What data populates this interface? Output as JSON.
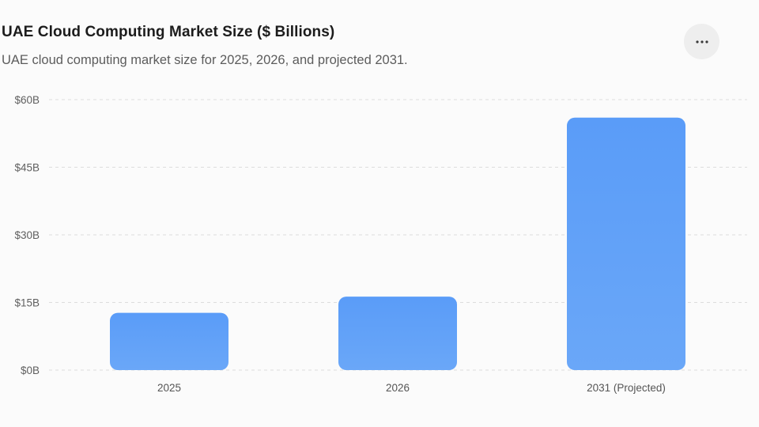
{
  "header": {
    "title": "UAE Cloud Computing Market Size ($ Billions)",
    "subtitle": "UAE cloud computing market size for 2025, 2026, and projected 2031."
  },
  "menu": {
    "icon": "more-horizontal-icon"
  },
  "colors": {
    "bar_top": "#5a9cf8",
    "bar_bottom": "#6aa7f8",
    "grid": "#dddddd",
    "background": "#fbfbfb"
  },
  "chart_data": {
    "type": "bar",
    "categories": [
      "2025",
      "2026",
      "2031 (Projected)"
    ],
    "values": [
      12.7,
      16.3,
      56
    ],
    "ylim": [
      0,
      60
    ],
    "yticks": [
      0,
      15,
      30,
      45,
      60
    ],
    "ytick_labels": [
      "$0B",
      "$15B",
      "$30B",
      "$45B",
      "$60B"
    ],
    "grid": true,
    "legend": "none"
  }
}
